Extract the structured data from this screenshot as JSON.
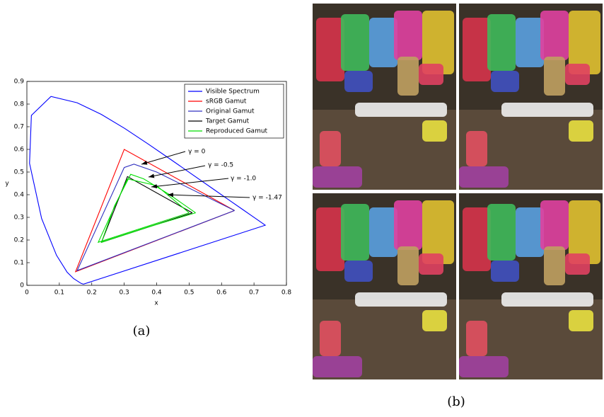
{
  "chart_data": {
    "type": "line",
    "xlabel": "x",
    "ylabel": "y",
    "xlim": [
      0,
      0.8
    ],
    "ylim": [
      0,
      0.9
    ],
    "xticks": [
      0,
      0.1,
      0.2,
      0.3,
      0.4,
      0.5,
      0.6,
      0.7,
      0.8
    ],
    "yticks": [
      0,
      0.1,
      0.2,
      0.3,
      0.4,
      0.5,
      0.6,
      0.7,
      0.8,
      0.9
    ],
    "legend": "upper right",
    "series": [
      {
        "name": "Visible Spectrum",
        "color": "#0000ff",
        "x": [
          0.1741,
          0.1666,
          0.144,
          0.1241,
          0.0913,
          0.0454,
          0.0082,
          0.0139,
          0.0743,
          0.1547,
          0.2296,
          0.3016,
          0.3731,
          0.4441,
          0.5125,
          0.5752,
          0.627,
          0.6658,
          0.6915,
          0.7347,
          0.1741
        ],
        "y": [
          0.005,
          0.0089,
          0.0297,
          0.0578,
          0.1327,
          0.295,
          0.5384,
          0.7502,
          0.8338,
          0.8059,
          0.7543,
          0.6923,
          0.6245,
          0.5547,
          0.4866,
          0.4242,
          0.3725,
          0.334,
          0.3083,
          0.2653,
          0.005
        ]
      },
      {
        "name": "sRGB Gamut",
        "color": "#ff0000",
        "x": [
          0.64,
          0.3,
          0.15,
          0.64
        ],
        "y": [
          0.33,
          0.6,
          0.06,
          0.33
        ]
      },
      {
        "name": "Original Gamut",
        "color": "#3030c0",
        "x": [
          0.64,
          0.4,
          0.33,
          0.3,
          0.155,
          0.64
        ],
        "y": [
          0.33,
          0.5,
          0.535,
          0.52,
          0.065,
          0.33
        ]
      },
      {
        "name": "Target Gamut",
        "color": "#000000",
        "x": [
          0.51,
          0.31,
          0.23,
          0.51
        ],
        "y": [
          0.32,
          0.48,
          0.19,
          0.32
        ]
      },
      {
        "name": "Reproduced Gamut",
        "color": "#00dd00",
        "x": [
          0.52,
          0.44,
          0.36,
          0.32,
          0.27,
          0.23,
          0.38,
          0.52,
          null,
          0.5,
          0.4,
          0.31,
          0.22,
          0.5
        ],
        "y": [
          0.32,
          0.4,
          0.47,
          0.49,
          0.35,
          0.19,
          0.26,
          0.32,
          null,
          0.32,
          0.44,
          0.47,
          0.19,
          0.32
        ]
      }
    ],
    "annotations": [
      "γ = 0",
      "γ = -0.5",
      "γ = -1.0",
      "γ = -1.47"
    ]
  },
  "figure": {
    "caption_a": "(a)",
    "caption_b": "(b)"
  }
}
